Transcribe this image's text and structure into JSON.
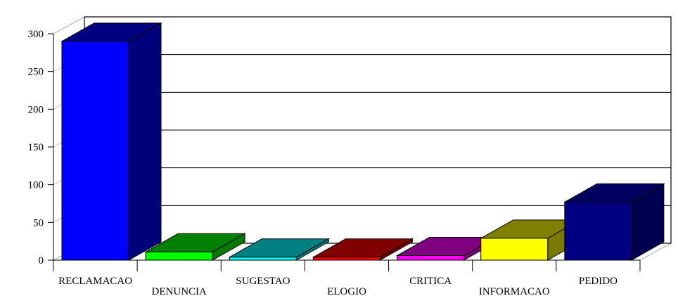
{
  "chart_data": {
    "type": "bar",
    "title": "",
    "xlabel": "",
    "ylabel": "",
    "ylim": [
      0,
      300
    ],
    "yticks": [
      0,
      50,
      100,
      150,
      200,
      250,
      300
    ],
    "grid": true,
    "categories": [
      "RECLAMACAO",
      "DENUNCIA",
      "SUGESTAO",
      "ELOGIO",
      "CRITICA",
      "INFORMACAO",
      "PEDIDO"
    ],
    "values": [
      290,
      11,
      4,
      4,
      6,
      29,
      77
    ],
    "colors": [
      {
        "front": "#0000ff",
        "top": "#000080",
        "side": "#00007a"
      },
      {
        "front": "#00ff00",
        "top": "#008000",
        "side": "#007a00"
      },
      {
        "front": "#00ffff",
        "top": "#008080",
        "side": "#007a7a"
      },
      {
        "front": "#ff0000",
        "top": "#800000",
        "side": "#7a0000"
      },
      {
        "front": "#ff00ff",
        "top": "#800080",
        "side": "#7a007a"
      },
      {
        "front": "#ffff00",
        "top": "#808000",
        "side": "#7a7a00"
      },
      {
        "front": "#000080",
        "top": "#000060",
        "side": "#000050"
      }
    ]
  }
}
